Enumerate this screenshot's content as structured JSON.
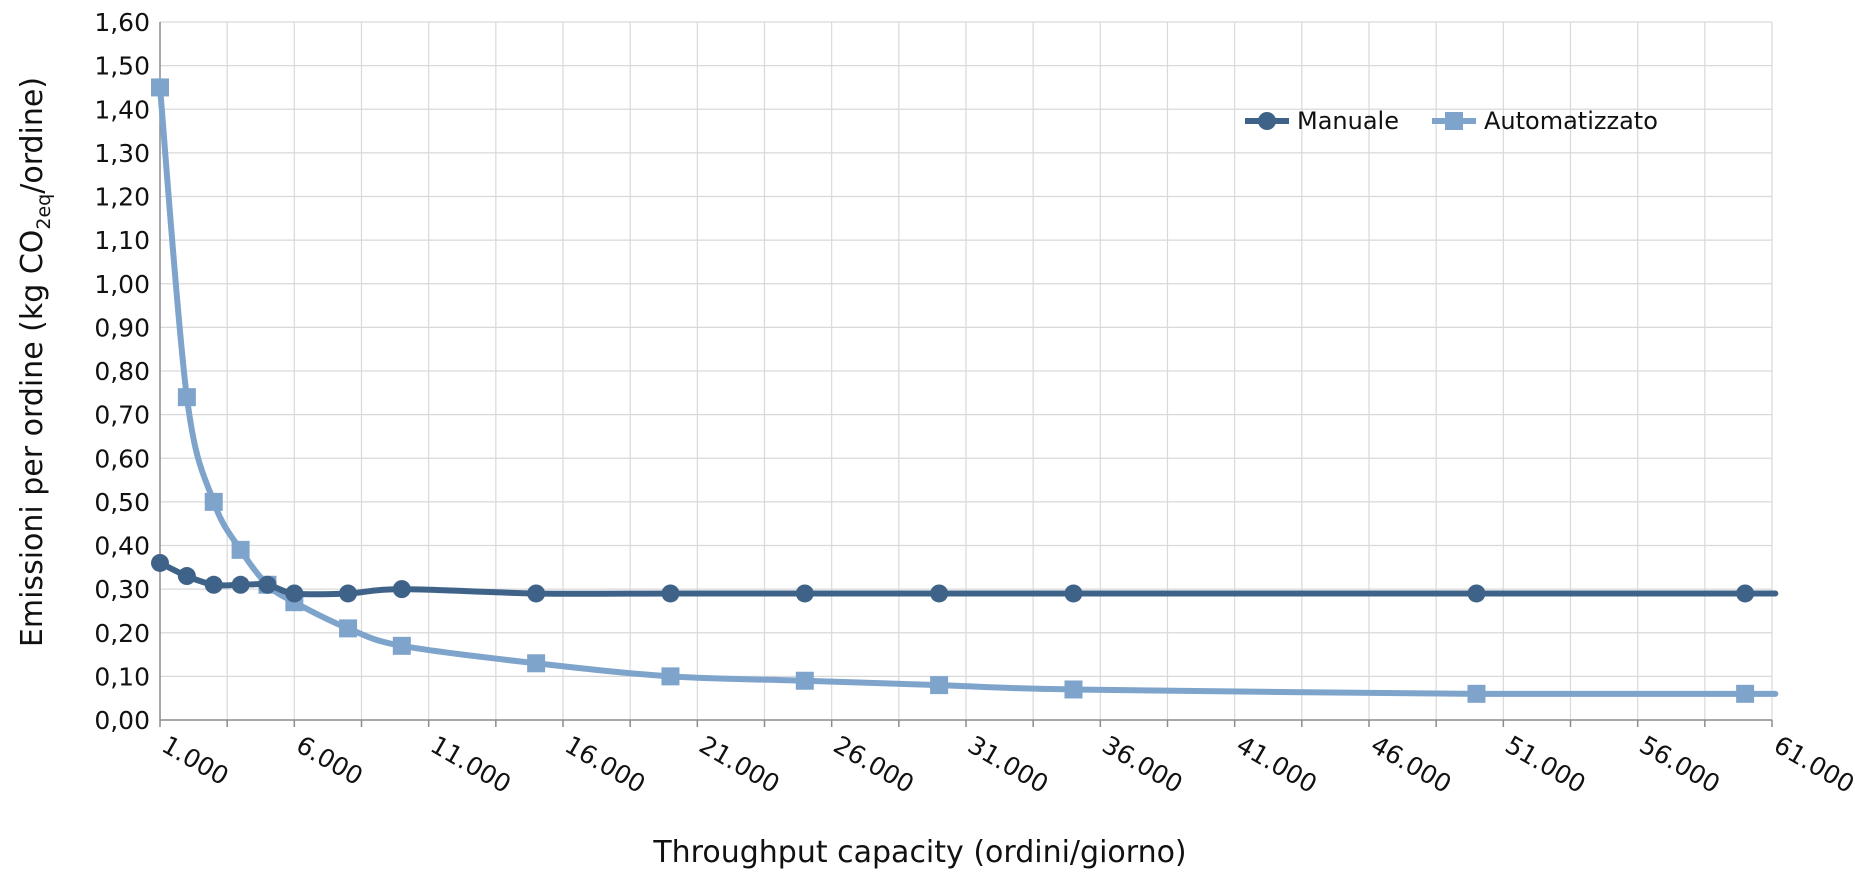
{
  "chart_data": {
    "type": "line",
    "xlabel": "Throughput capacity (ordini/giorno)",
    "ylabel": {
      "main": "Emissioni per ordine (kg CO",
      "subscript": "2eq",
      "suffix": "/ordine)"
    },
    "xlim": [
      1000,
      61000
    ],
    "ylim": [
      0,
      1.6
    ],
    "x_ticks": [
      1000,
      6000,
      11000,
      16000,
      21000,
      26000,
      31000,
      36000,
      41000,
      46000,
      51000,
      56000,
      61000
    ],
    "x_tick_labels": [
      "1.000",
      "6.000",
      "11.000",
      "16.000",
      "21.000",
      "26.000",
      "31.000",
      "36.000",
      "41.000",
      "46.000",
      "51.000",
      "56.000",
      "61.000"
    ],
    "y_ticks": [
      0,
      0.1,
      0.2,
      0.3,
      0.4,
      0.5,
      0.6,
      0.7,
      0.8,
      0.9,
      1.0,
      1.1,
      1.2,
      1.3,
      1.4,
      1.5,
      1.6
    ],
    "y_tick_labels": [
      "0,00",
      "0,10",
      "0,20",
      "0,30",
      "0,40",
      "0,50",
      "0,60",
      "0,70",
      "0,80",
      "0,90",
      "1,00",
      "1,10",
      "1,20",
      "1,30",
      "1,40",
      "1,50",
      "1,60"
    ],
    "grid": true,
    "legend_position": "top-right",
    "series": [
      {
        "name": "Manuale",
        "color": "#3f6388",
        "marker": "circle",
        "x": [
          1000,
          2000,
          3000,
          4000,
          5000,
          6000,
          8000,
          10000,
          15000,
          20000,
          25000,
          30000,
          35000,
          50000,
          60000,
          61000
        ],
        "y": [
          0.36,
          0.33,
          0.31,
          0.31,
          0.31,
          0.29,
          0.29,
          0.3,
          0.29,
          0.29,
          0.29,
          0.29,
          0.29,
          0.29,
          0.29,
          0.29
        ]
      },
      {
        "name": "Automatizzato",
        "color": "#7fa4cc",
        "marker": "square",
        "x": [
          1000,
          2000,
          3000,
          4000,
          5000,
          6000,
          8000,
          10000,
          15000,
          20000,
          25000,
          30000,
          35000,
          50000,
          60000,
          61000
        ],
        "y": [
          1.45,
          0.74,
          0.5,
          0.39,
          0.31,
          0.27,
          0.21,
          0.17,
          0.13,
          0.1,
          0.09,
          0.08,
          0.07,
          0.06,
          0.06,
          0.06
        ]
      }
    ]
  }
}
